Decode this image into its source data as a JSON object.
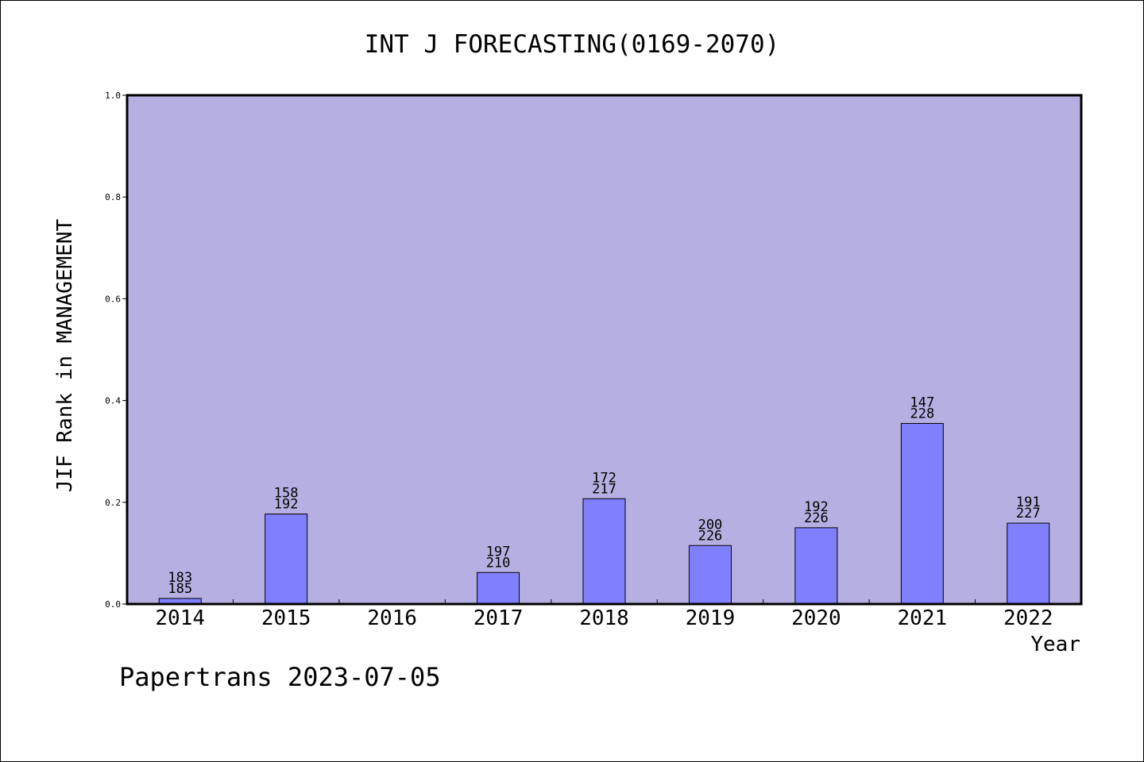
{
  "chart_data": {
    "type": "bar",
    "title": "INT J FORECASTING(0169-2070)",
    "xlabel": "Year",
    "ylabel": "JIF Rank in MANAGEMENT",
    "categories": [
      "2014",
      "2015",
      "2016",
      "2017",
      "2018",
      "2019",
      "2020",
      "2021",
      "2022"
    ],
    "values": [
      0.011,
      0.177,
      null,
      0.062,
      0.207,
      0.115,
      0.15,
      0.355,
      0.159
    ],
    "labels": [
      [
        "183",
        "185"
      ],
      [
        "158",
        "192"
      ],
      null,
      [
        "197",
        "210"
      ],
      [
        "172",
        "217"
      ],
      [
        "200",
        "226"
      ],
      [
        "192",
        "226"
      ],
      [
        "147",
        "228"
      ],
      [
        "191",
        "227"
      ]
    ],
    "ylim": [
      0,
      1.0
    ],
    "yticks": [
      "0.0",
      "0.2",
      "0.4",
      "0.6",
      "0.8",
      "1.0"
    ],
    "grid": false,
    "colors": {
      "plot_background": "#b6b0e2",
      "bar_fill": "#8080ff",
      "bar_stroke": "#000000"
    }
  },
  "footer": {
    "text": "Papertrans 2023-07-05"
  }
}
